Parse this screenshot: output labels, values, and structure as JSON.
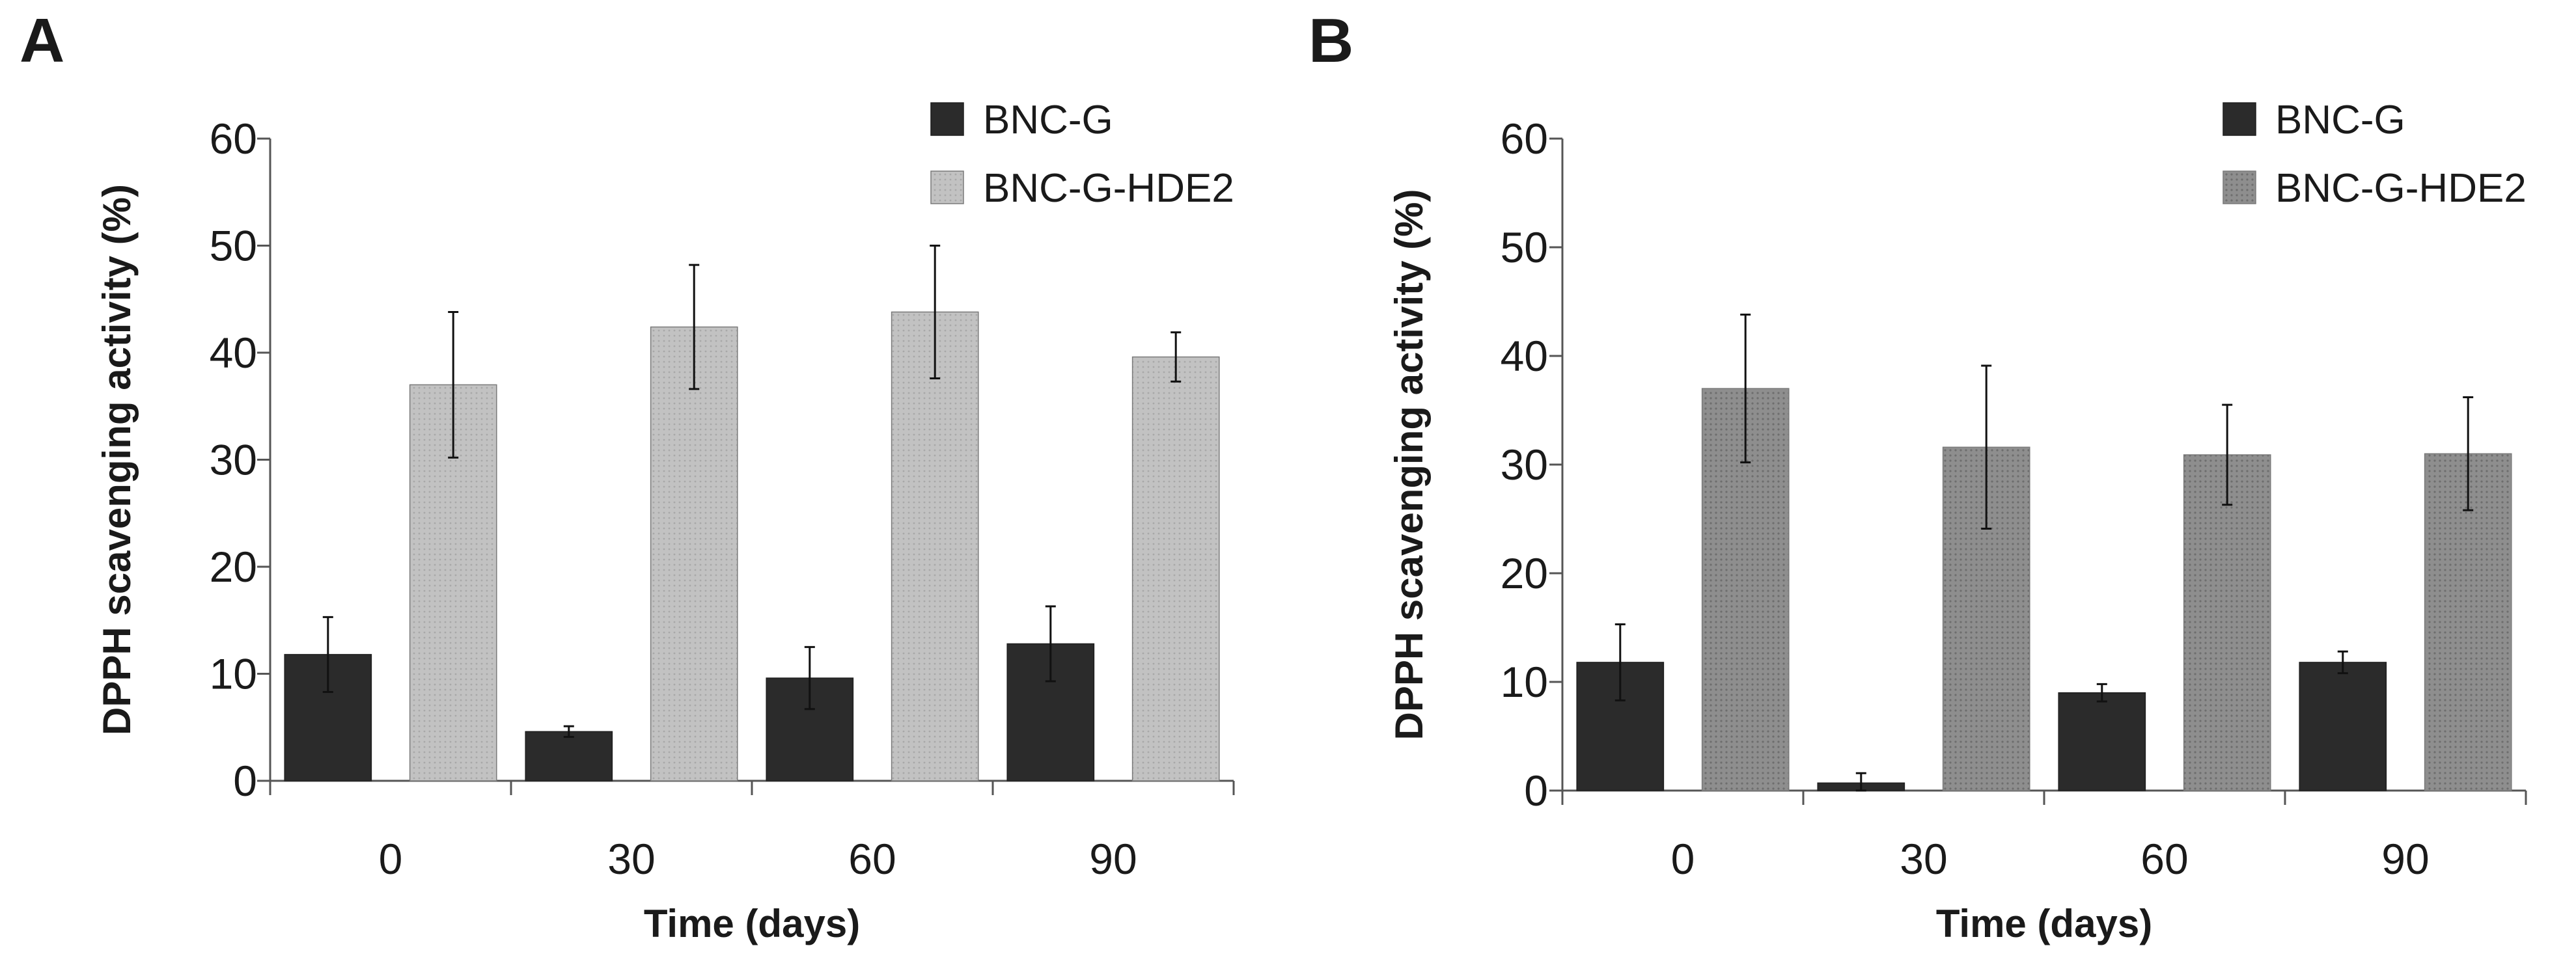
{
  "chart_data": [
    {
      "panel": "A",
      "type": "bar",
      "title": "",
      "xlabel": "Time (days)",
      "ylabel": "DPPH scavenging activity (%)",
      "categories": [
        "0",
        "30",
        "60",
        "90"
      ],
      "ylim": [
        0,
        60
      ],
      "yticks": [
        "0",
        "10",
        "20",
        "30",
        "40",
        "50",
        "60"
      ],
      "grid": false,
      "legend_position": "top-right",
      "series": [
        {
          "name": "BNC-G",
          "values": [
            11.8,
            4.6,
            9.6,
            12.8
          ],
          "errors": [
            3.5,
            0.5,
            2.9,
            3.5
          ],
          "color": "#2b2b2b"
        },
        {
          "name": "BNC-G-HDE2",
          "values": [
            37.0,
            42.4,
            43.8,
            39.6
          ],
          "errors": [
            6.8,
            5.8,
            6.2,
            2.3
          ],
          "color": "#bdbdbd"
        }
      ]
    },
    {
      "panel": "B",
      "type": "bar",
      "title": "",
      "xlabel": "Time (days)",
      "ylabel": "DPPH scavenging activity (%)",
      "categories": [
        "0",
        "30",
        "60",
        "90"
      ],
      "ylim": [
        0,
        60
      ],
      "yticks": [
        "0",
        "10",
        "20",
        "30",
        "40",
        "50",
        "60"
      ],
      "grid": false,
      "legend_position": "top-right",
      "series": [
        {
          "name": "BNC-G",
          "values": [
            11.8,
            0.7,
            9.0,
            11.8
          ],
          "errors": [
            3.5,
            0.9,
            0.8,
            1.0
          ],
          "color": "#2b2b2b"
        },
        {
          "name": "BNC-G-HDE2",
          "values": [
            37.0,
            31.6,
            30.9,
            31.0
          ],
          "errors": [
            6.8,
            7.5,
            4.6,
            5.2
          ],
          "color": "#8c8c8c"
        }
      ]
    }
  ]
}
